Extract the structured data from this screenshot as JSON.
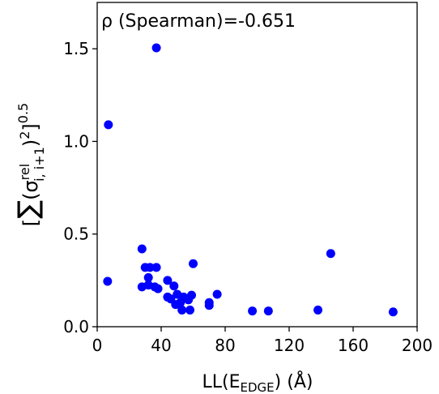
{
  "chart_data": {
    "type": "scatter",
    "annotation": "ρ (Spearman)=-0.651",
    "xlabel": {
      "base": "LL(E",
      "sub": "EDGE",
      "tail": ") (Å)"
    },
    "ylabel": {
      "open": "[",
      "sum": "∑",
      "sigma": "(σ",
      "sup": "rel",
      "sub": "i, i+1",
      "close": ")",
      "sq": "2",
      "bracket": "]",
      "exp": "0.5"
    },
    "xlim": [
      0,
      200
    ],
    "ylim": [
      0,
      1.75
    ],
    "xticks": [
      0,
      40,
      80,
      120,
      160,
      200
    ],
    "yticks": [
      0.0,
      0.5,
      1.0,
      1.5
    ],
    "ytick_labels": [
      "0.0",
      "0.5",
      "1.0",
      "1.5"
    ],
    "marker_color": "#0000ff",
    "grid": false,
    "points": [
      {
        "x": 7,
        "y": 1.09
      },
      {
        "x": 37,
        "y": 1.505
      },
      {
        "x": 6.5,
        "y": 0.245
      },
      {
        "x": 146,
        "y": 0.395
      },
      {
        "x": 28,
        "y": 0.42
      },
      {
        "x": 60,
        "y": 0.34
      },
      {
        "x": 30,
        "y": 0.32
      },
      {
        "x": 33,
        "y": 0.32
      },
      {
        "x": 37,
        "y": 0.32
      },
      {
        "x": 32,
        "y": 0.265
      },
      {
        "x": 44,
        "y": 0.25
      },
      {
        "x": 28,
        "y": 0.215
      },
      {
        "x": 32,
        "y": 0.225
      },
      {
        "x": 36,
        "y": 0.215
      },
      {
        "x": 38,
        "y": 0.205
      },
      {
        "x": 48,
        "y": 0.22
      },
      {
        "x": 44,
        "y": 0.16
      },
      {
        "x": 46,
        "y": 0.15
      },
      {
        "x": 50,
        "y": 0.175
      },
      {
        "x": 49,
        "y": 0.12
      },
      {
        "x": 52,
        "y": 0.13
      },
      {
        "x": 54,
        "y": 0.16
      },
      {
        "x": 57,
        "y": 0.145
      },
      {
        "x": 59,
        "y": 0.17
      },
      {
        "x": 53,
        "y": 0.09
      },
      {
        "x": 58,
        "y": 0.09
      },
      {
        "x": 70,
        "y": 0.115
      },
      {
        "x": 70,
        "y": 0.13
      },
      {
        "x": 75,
        "y": 0.175
      },
      {
        "x": 97,
        "y": 0.085
      },
      {
        "x": 107,
        "y": 0.085
      },
      {
        "x": 138,
        "y": 0.09
      },
      {
        "x": 185,
        "y": 0.08
      }
    ]
  }
}
